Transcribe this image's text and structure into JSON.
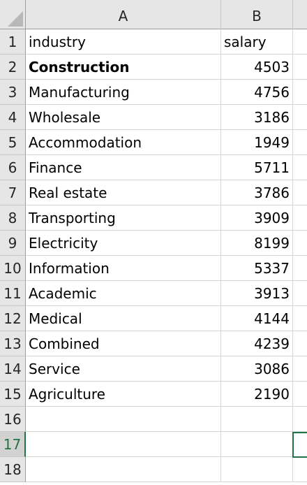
{
  "columns": {
    "a": "A",
    "b": "B"
  },
  "rows": [
    {
      "num": "1",
      "a": "industry",
      "b": "salary"
    },
    {
      "num": "2",
      "a": "Construction",
      "b": "4503"
    },
    {
      "num": "3",
      "a": "Manufacturing",
      "b": "4756"
    },
    {
      "num": "4",
      "a": "Wholesale",
      "b": "3186"
    },
    {
      "num": "5",
      "a": "Accommodation",
      "b": "1949"
    },
    {
      "num": "6",
      "a": "Finance",
      "b": "5711"
    },
    {
      "num": "7",
      "a": "Real estate",
      "b": "3786"
    },
    {
      "num": "8",
      "a": "Transporting",
      "b": "3909"
    },
    {
      "num": "9",
      "a": "Electricity",
      "b": "8199"
    },
    {
      "num": "10",
      "a": "Information",
      "b": "5337"
    },
    {
      "num": "11",
      "a": "Academic",
      "b": "3913"
    },
    {
      "num": "12",
      "a": "Medical",
      "b": "4144"
    },
    {
      "num": "13",
      "a": "Combined",
      "b": "4239"
    },
    {
      "num": "14",
      "a": "Service",
      "b": "3086"
    },
    {
      "num": "15",
      "a": "Agriculture",
      "b": "2190"
    },
    {
      "num": "16",
      "a": "",
      "b": ""
    },
    {
      "num": "17",
      "a": "",
      "b": ""
    },
    {
      "num": "18",
      "a": "",
      "b": ""
    }
  ],
  "active_row": "17",
  "colors": {
    "selection": "#217346",
    "header_bg": "#e6e6e6",
    "gridline": "#d4d4d4"
  }
}
